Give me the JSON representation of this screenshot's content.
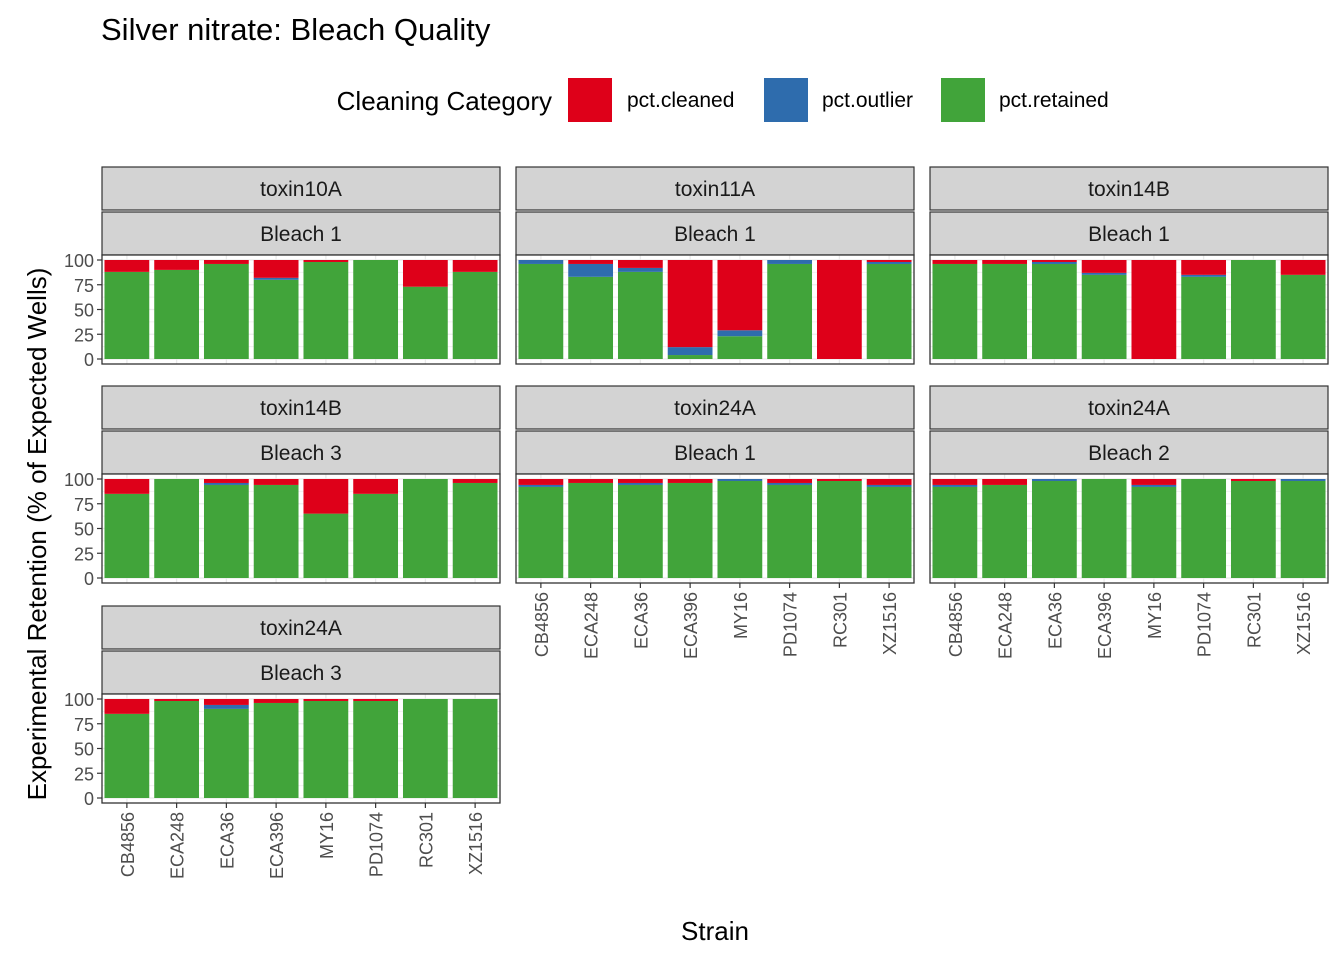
{
  "title": "Silver nitrate: Bleach Quality",
  "legend": {
    "title": "Cleaning Category",
    "items": [
      {
        "key": "cleaned",
        "label": "pct.cleaned",
        "color": "#DE0019"
      },
      {
        "key": "outlier",
        "label": "pct.outlier",
        "color": "#2E6CAD"
      },
      {
        "key": "retained",
        "label": "pct.retained",
        "color": "#41A43A"
      }
    ]
  },
  "chart_data": {
    "type": "bar",
    "stacked": true,
    "xlabel": "Strain",
    "ylabel": "Experimental Retention (% of Expected Wells)",
    "ylim": [
      0,
      100
    ],
    "yticks": [
      0,
      25,
      50,
      75,
      100
    ],
    "categories": [
      "CB4856",
      "ECA248",
      "ECA36",
      "ECA396",
      "MY16",
      "PD1074",
      "RC301",
      "XZ1516"
    ],
    "stack_order": [
      "retained",
      "outlier",
      "cleaned"
    ],
    "grid": true,
    "legend_position": "top",
    "panels": [
      {
        "toxin": "toxin10A",
        "bleach": "Bleach 1",
        "retained": [
          88,
          90,
          96,
          80,
          98,
          100,
          73,
          88
        ],
        "outlier": [
          0,
          0,
          0,
          2,
          0,
          0,
          0,
          0
        ],
        "cleaned": [
          12,
          10,
          4,
          18,
          2,
          0,
          27,
          12
        ]
      },
      {
        "toxin": "toxin11A",
        "bleach": "Bleach 1",
        "retained": [
          96,
          83,
          88,
          4,
          23,
          96,
          0,
          96
        ],
        "outlier": [
          4,
          13,
          4,
          8,
          6,
          4,
          0,
          2
        ],
        "cleaned": [
          0,
          4,
          8,
          88,
          71,
          0,
          100,
          2
        ]
      },
      {
        "toxin": "toxin14B",
        "bleach": "Bleach 1",
        "retained": [
          96,
          96,
          96,
          85,
          0,
          83,
          100,
          85
        ],
        "outlier": [
          0,
          0,
          2,
          2,
          0,
          2,
          0,
          0
        ],
        "cleaned": [
          4,
          4,
          2,
          13,
          100,
          15,
          0,
          15
        ]
      },
      {
        "toxin": "toxin14B",
        "bleach": "Bleach 3",
        "retained": [
          85,
          100,
          94,
          94,
          65,
          85,
          100,
          96
        ],
        "outlier": [
          0,
          0,
          2,
          0,
          0,
          0,
          0,
          0
        ],
        "cleaned": [
          15,
          0,
          4,
          6,
          35,
          15,
          0,
          4
        ]
      },
      {
        "toxin": "toxin24A",
        "bleach": "Bleach 1",
        "retained": [
          92,
          96,
          94,
          96,
          98,
          94,
          98,
          92
        ],
        "outlier": [
          2,
          0,
          2,
          0,
          2,
          2,
          0,
          2
        ],
        "cleaned": [
          6,
          4,
          4,
          4,
          0,
          4,
          2,
          6
        ]
      },
      {
        "toxin": "toxin24A",
        "bleach": "Bleach 2",
        "retained": [
          92,
          94,
          98,
          100,
          92,
          100,
          98,
          98
        ],
        "outlier": [
          2,
          0,
          2,
          0,
          2,
          0,
          0,
          2
        ],
        "cleaned": [
          6,
          6,
          0,
          0,
          6,
          0,
          2,
          0
        ]
      },
      {
        "toxin": "toxin24A",
        "bleach": "Bleach 3",
        "retained": [
          85,
          98,
          90,
          96,
          98,
          98,
          100,
          100
        ],
        "outlier": [
          0,
          0,
          4,
          0,
          0,
          0,
          0,
          0
        ],
        "cleaned": [
          15,
          2,
          6,
          4,
          2,
          2,
          0,
          0
        ]
      }
    ]
  }
}
